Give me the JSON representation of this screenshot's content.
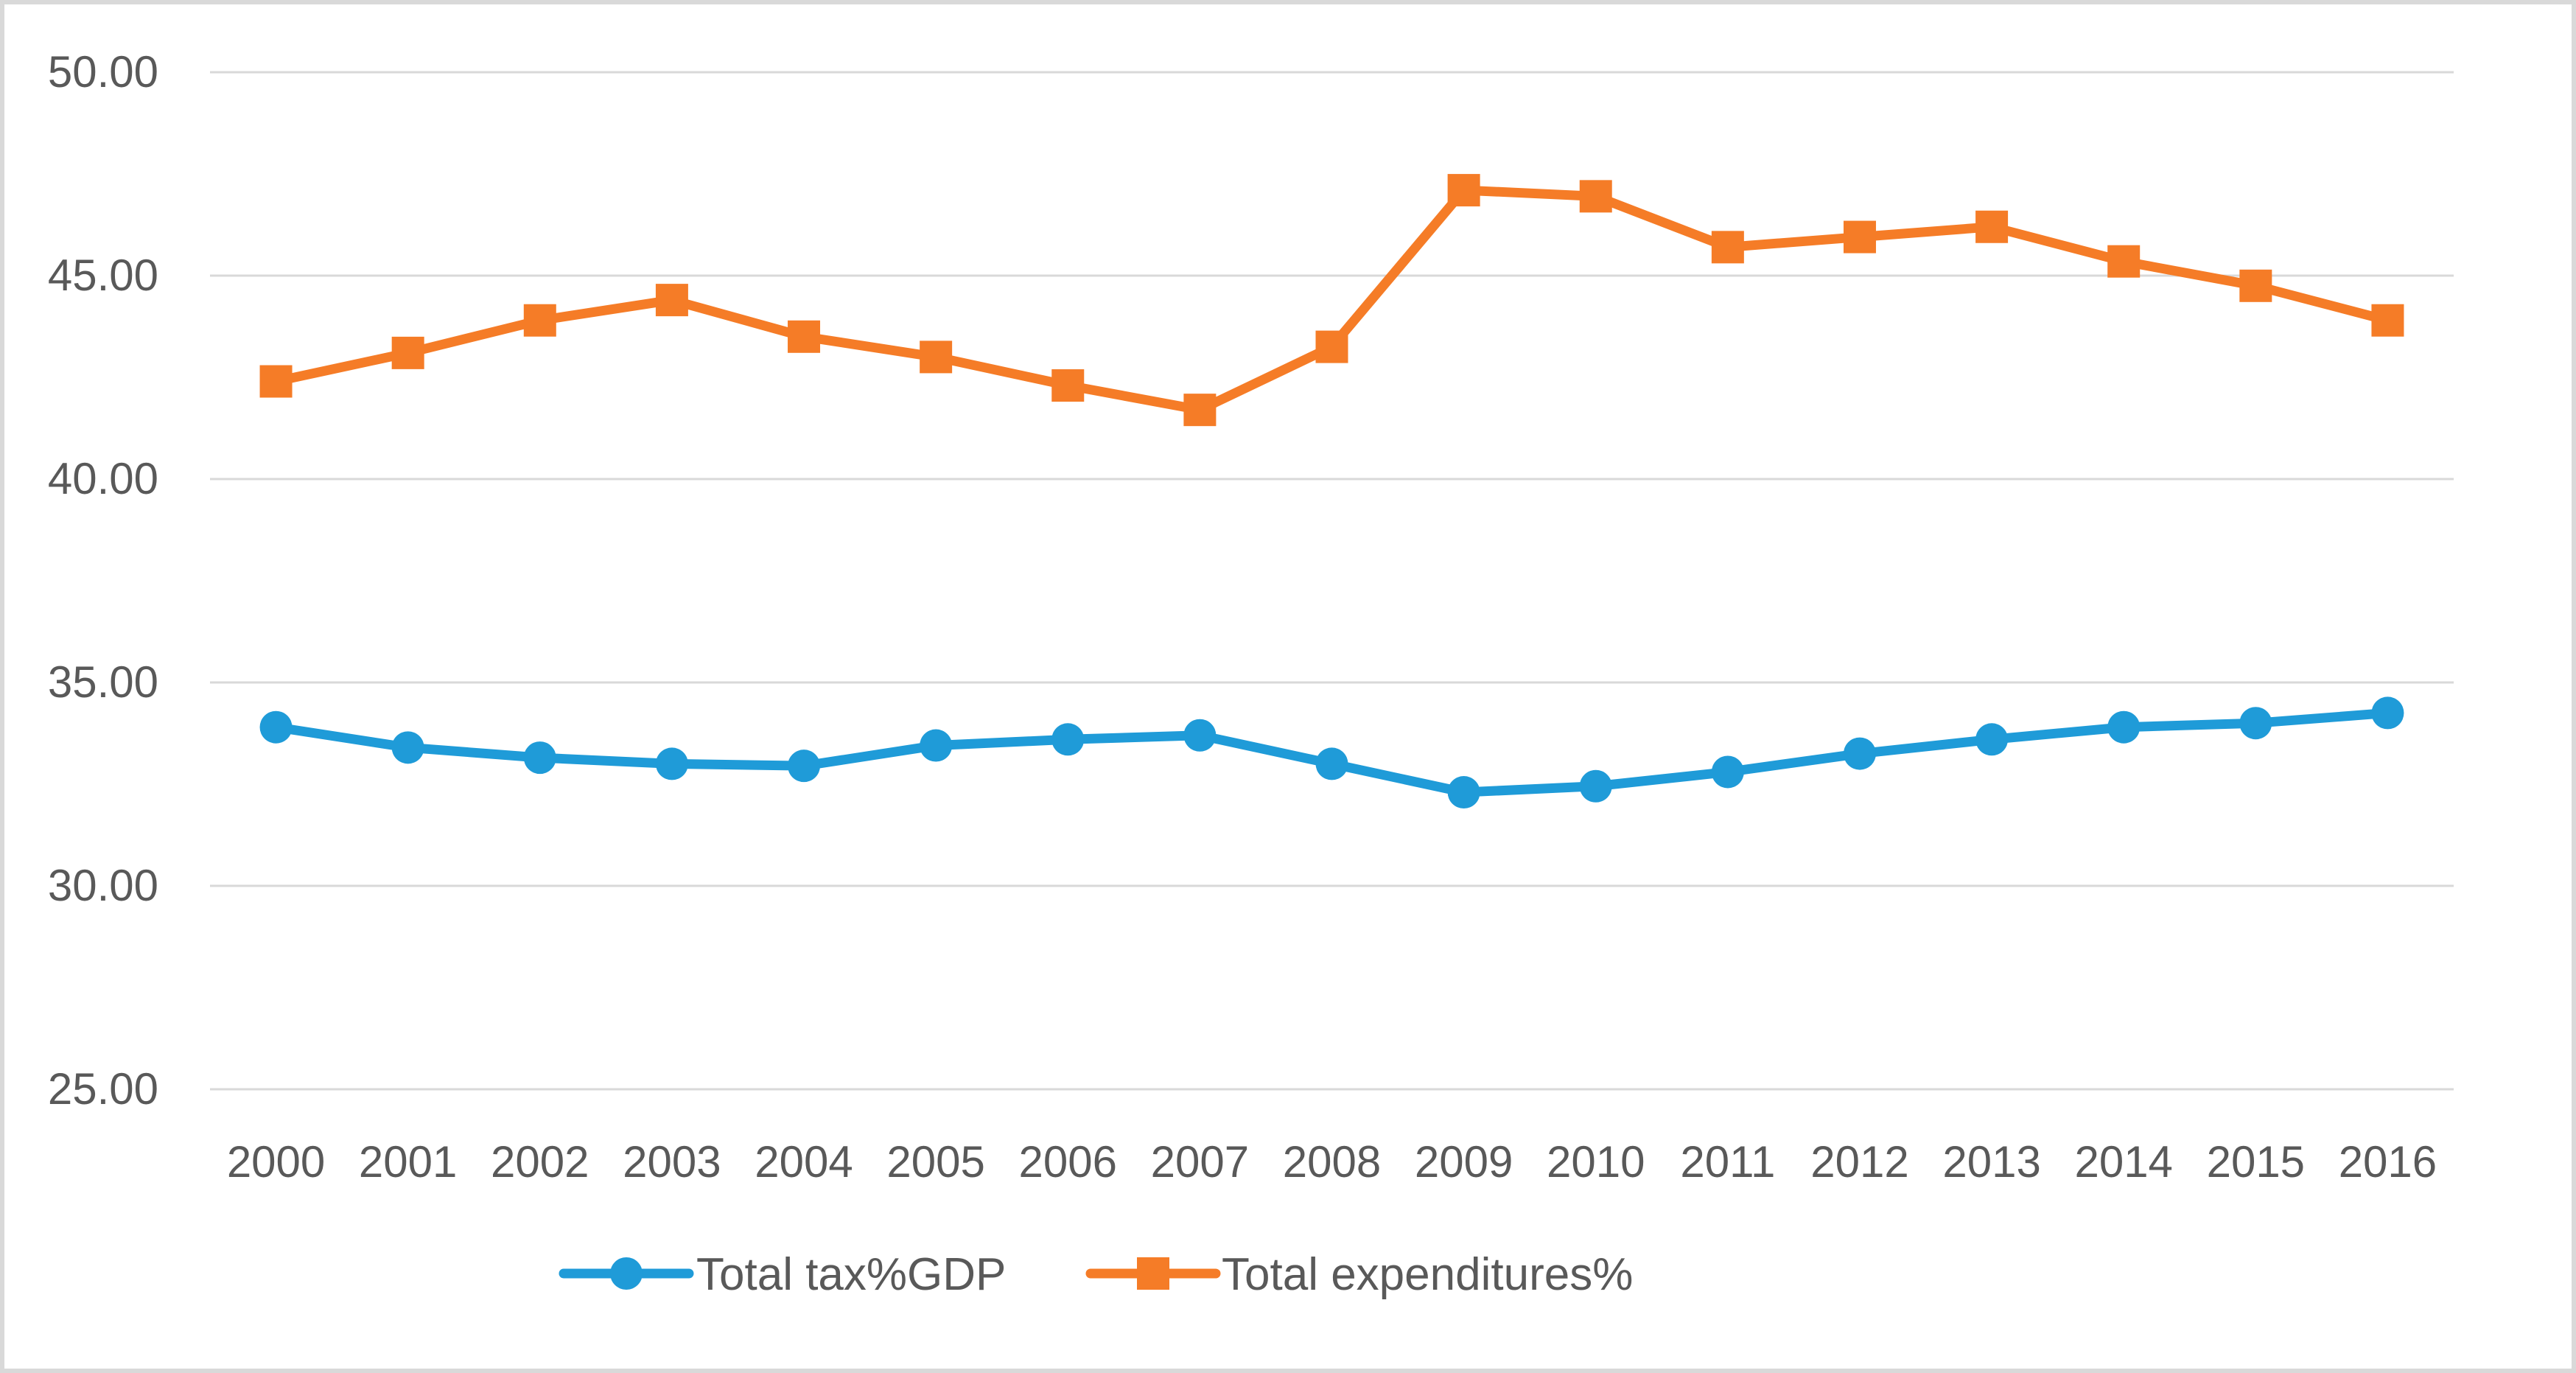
{
  "chart_data": {
    "type": "line",
    "title": "",
    "xlabel": "",
    "ylabel": "",
    "ylim": [
      25,
      50
    ],
    "yticks": [
      "50.00",
      "45.00",
      "40.00",
      "35.00",
      "30.00",
      "25.00"
    ],
    "categories": [
      "2000",
      "2001",
      "2002",
      "2003",
      "2004",
      "2005",
      "2006",
      "2007",
      "2008",
      "2009",
      "2010",
      "2011",
      "2012",
      "2013",
      "2014",
      "2015",
      "2016"
    ],
    "grid": true,
    "legend_position": "bottom",
    "series": [
      {
        "name": "Total tax%GDP",
        "color": "#1f9bd8",
        "marker": "circle",
        "values": [
          33.9,
          33.4,
          33.15,
          33.0,
          32.95,
          33.45,
          33.6,
          33.7,
          33.0,
          32.3,
          32.45,
          32.8,
          33.25,
          33.6,
          33.9,
          34.0,
          34.25
        ]
      },
      {
        "name": "Total expenditures%",
        "color": "#f57c27",
        "marker": "square",
        "values": [
          42.4,
          43.1,
          43.9,
          44.4,
          43.5,
          43.0,
          42.3,
          41.7,
          43.25,
          47.1,
          46.95,
          45.7,
          45.95,
          46.2,
          45.35,
          44.75,
          43.9
        ]
      }
    ],
    "colors": {
      "grid": "#d9d9d9",
      "text": "#595959"
    }
  }
}
